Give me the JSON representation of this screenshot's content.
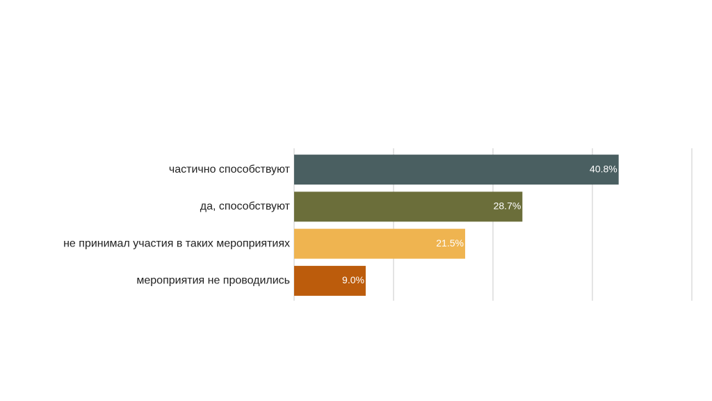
{
  "chart_data": {
    "type": "bar",
    "orientation": "horizontal",
    "categories": [
      "частично способствуют",
      "да, способствуют",
      "не принимал участия в таких мероприятиях",
      "мероприятия не проводились"
    ],
    "values": [
      40.8,
      28.7,
      21.5,
      9.0
    ],
    "value_labels": [
      "40.8%",
      "28.7%",
      "21.5%",
      "9.0%"
    ],
    "colors": [
      "#4a5f61",
      "#6b6e3a",
      "#efb450",
      "#bc5c0c"
    ],
    "xlim": [
      0,
      50
    ],
    "xticks": [
      0,
      12.5,
      25,
      37.5,
      50
    ],
    "grid": true
  }
}
